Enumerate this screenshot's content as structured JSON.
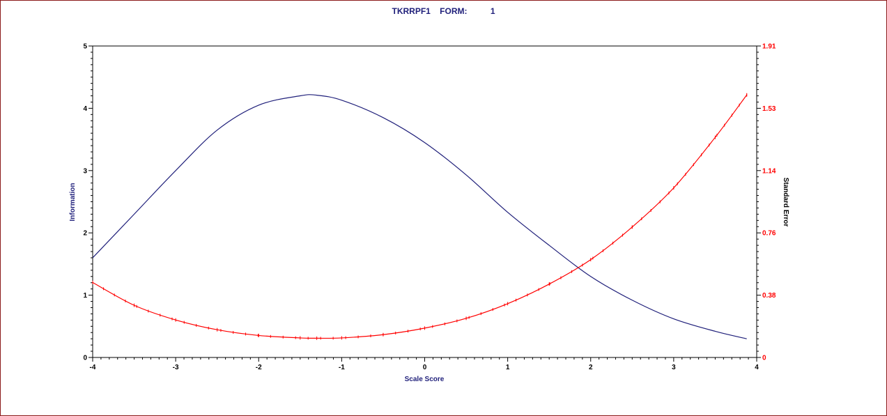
{
  "title": "TKRRPF1    FORM:          1",
  "colors": {
    "information": "#1f1f7a",
    "standard_error": "#ff0000",
    "frame": "#8b1a1a"
  },
  "chart_data": {
    "type": "line",
    "title": "TKRRPF1    FORM:          1",
    "xlabel": "Scale Score",
    "ylabel": "Information",
    "y2label": "Standard Error",
    "xlim": [
      -4,
      4
    ],
    "ylim": [
      0,
      5
    ],
    "y2lim": [
      0,
      1.91
    ],
    "x_ticks": [
      "-4",
      "-3",
      "-2",
      "-1",
      "0",
      "1",
      "2",
      "3",
      "4"
    ],
    "y_ticks": [
      "0",
      "1",
      "2",
      "3",
      "4",
      "5"
    ],
    "y2_ticks": [
      "0",
      "0.38",
      "0.76",
      "1.14",
      "1.53",
      "1.91"
    ],
    "grid": false,
    "x": [
      -4.0,
      -3.5,
      -3.0,
      -2.5,
      -2.0,
      -1.5,
      -1.3,
      -1.0,
      -0.5,
      0.0,
      0.5,
      1.0,
      1.5,
      2.0,
      2.5,
      3.0,
      3.5,
      3.88
    ],
    "series": [
      {
        "name": "Information",
        "axis": "left",
        "values": [
          1.6,
          2.3,
          3.0,
          3.65,
          4.05,
          4.2,
          4.21,
          4.13,
          3.85,
          3.45,
          2.93,
          2.33,
          1.8,
          1.3,
          0.92,
          0.62,
          0.42,
          0.3
        ]
      },
      {
        "name": "Standard Error",
        "axis": "right",
        "markers": true,
        "values": [
          0.46,
          0.32,
          0.23,
          0.17,
          0.135,
          0.12,
          0.118,
          0.12,
          0.14,
          0.18,
          0.24,
          0.33,
          0.45,
          0.6,
          0.8,
          1.04,
          1.35,
          1.61
        ]
      }
    ]
  }
}
